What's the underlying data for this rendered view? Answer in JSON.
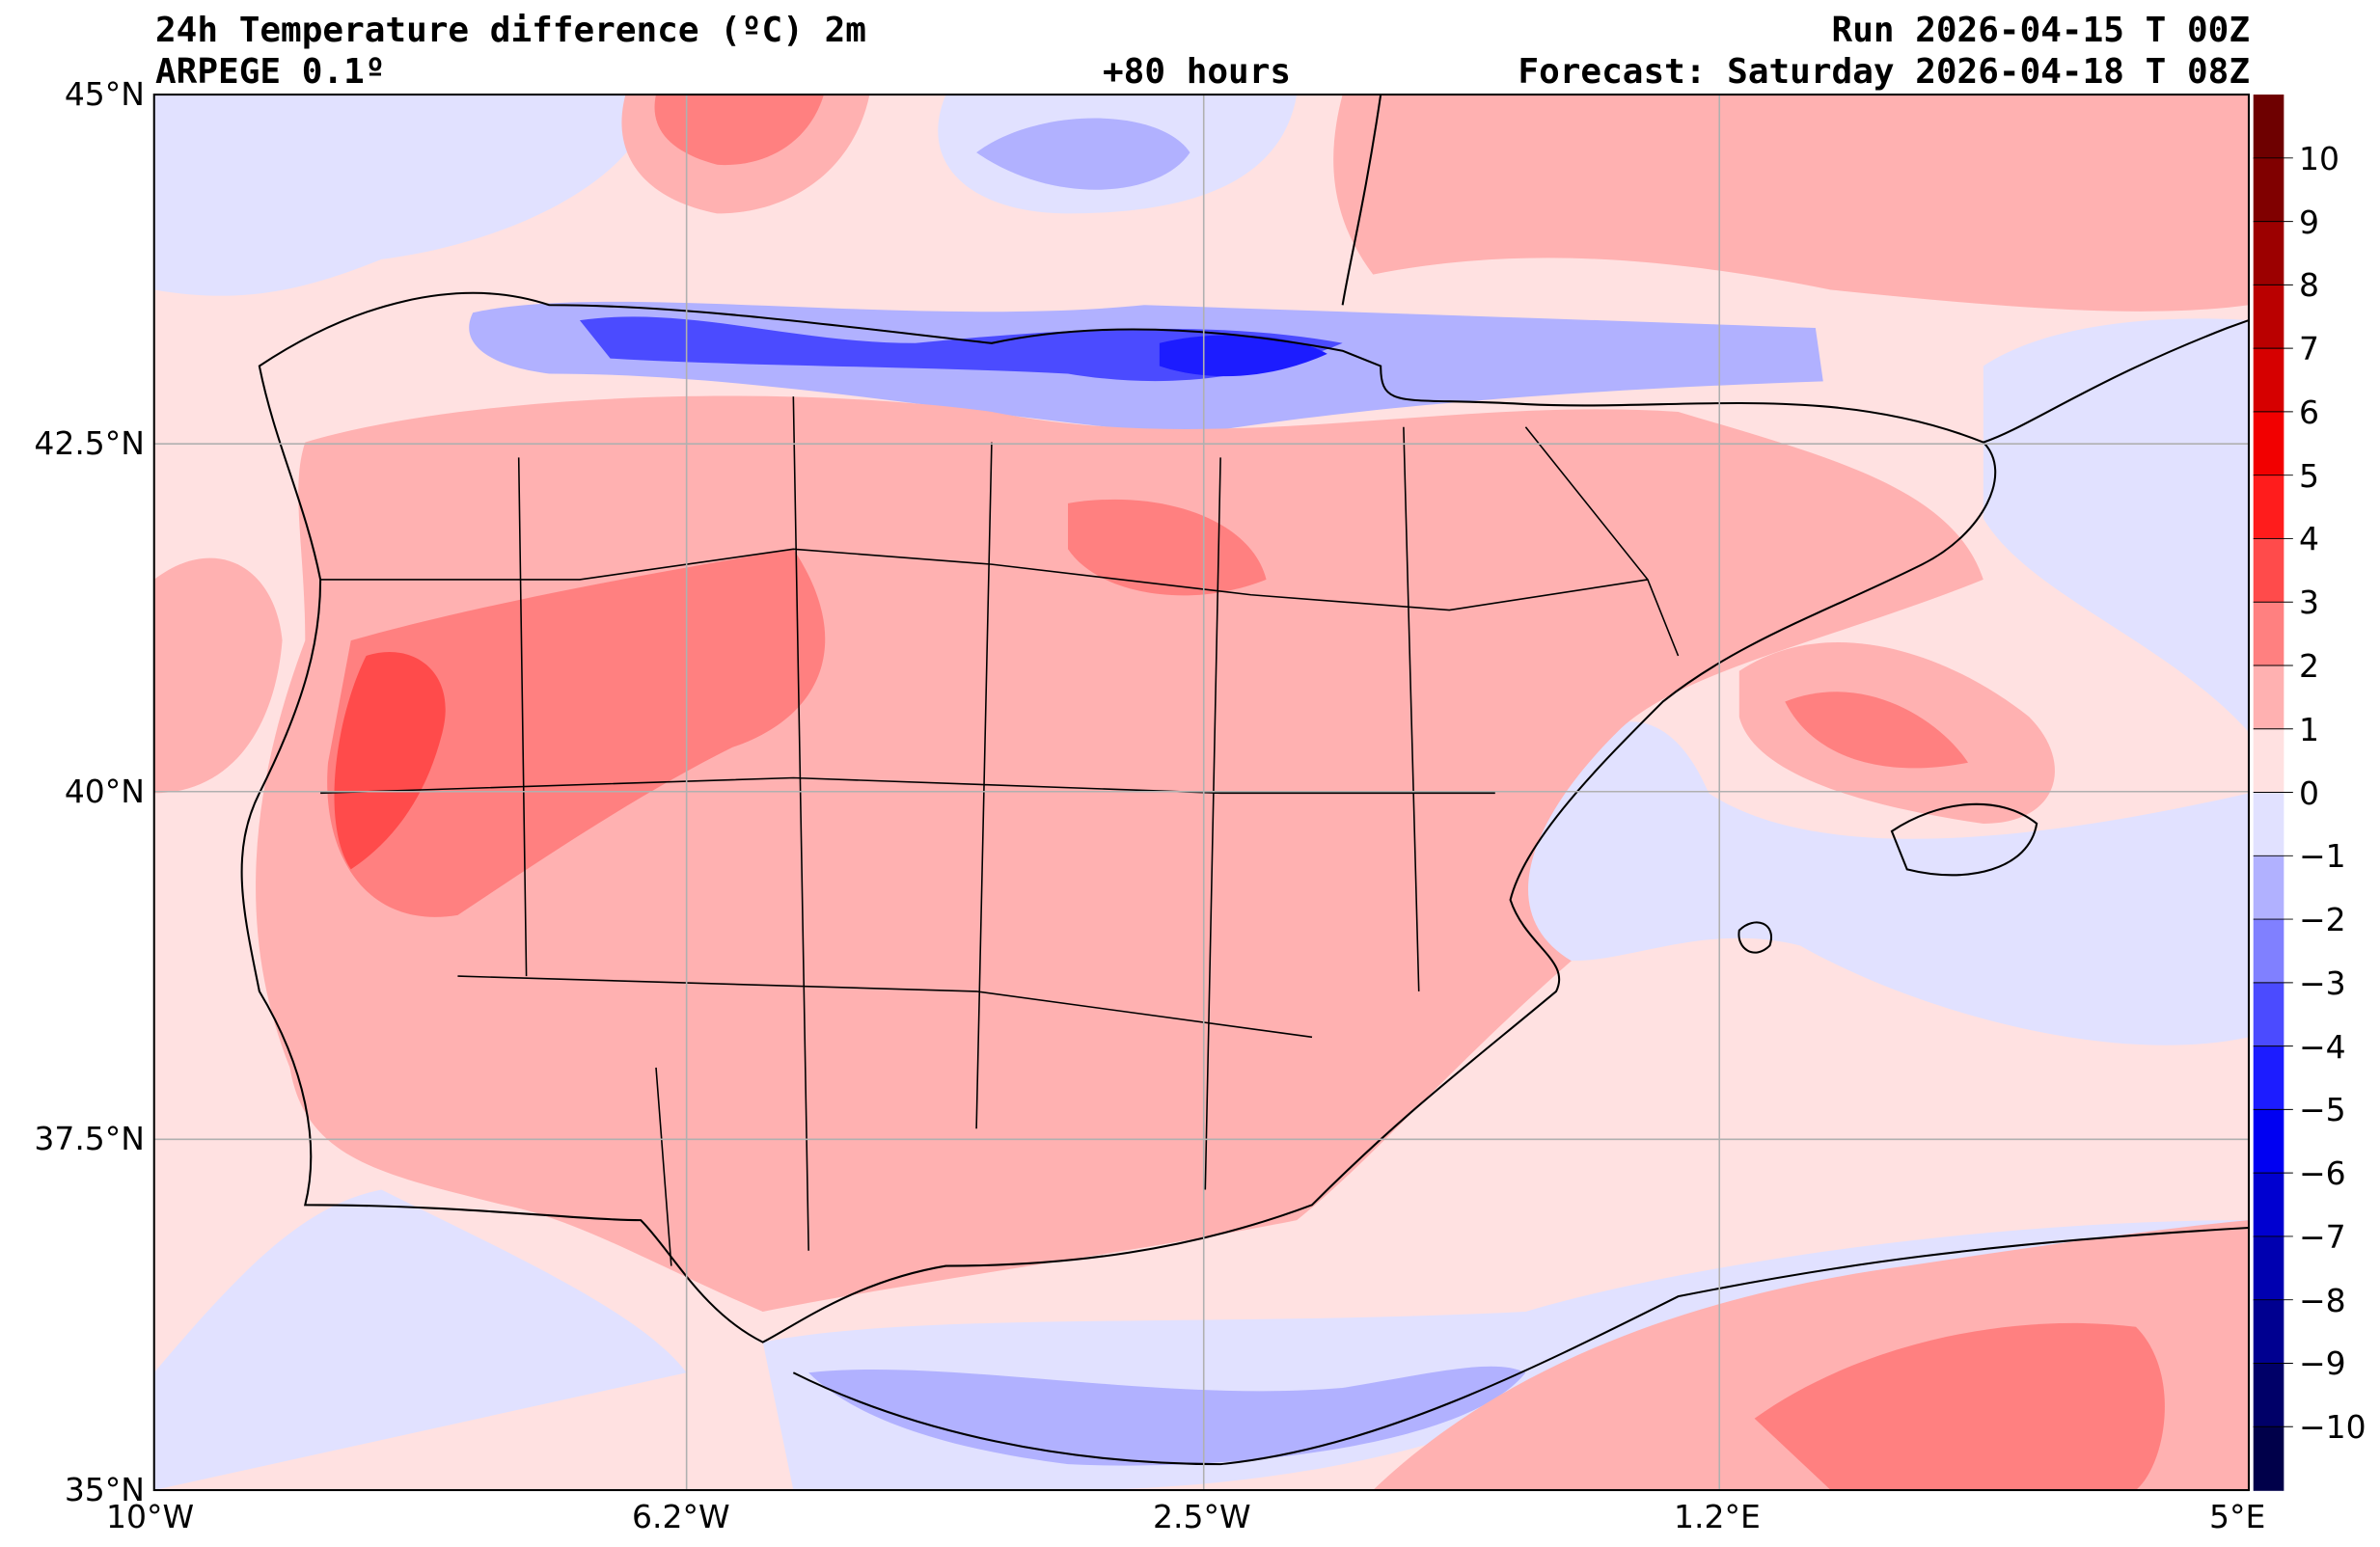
{
  "header": {
    "title": "24h Temperature difference (ºC) 2m",
    "model": "ARPEGE 0.1º",
    "lead_time": "+80 hours",
    "run": "Run 2026-04-15 T 00Z",
    "forecast": "Forecast: Saturday 2026-04-18 T 08Z"
  },
  "map": {
    "lat_labels": [
      "45°N",
      "42.5°N",
      "40°N",
      "37.5°N",
      "35°N"
    ],
    "lon_labels": [
      "10°W",
      "6.2°W",
      "2.5°W",
      "1.2°E",
      "5°E"
    ]
  },
  "colorbar": {
    "tick_labels": [
      "10",
      "9",
      "8",
      "7",
      "6",
      "5",
      "4",
      "3",
      "2",
      "1",
      "0",
      "−1",
      "−2",
      "−3",
      "−4",
      "−5",
      "−6",
      "−7",
      "−8",
      "−9",
      "−10"
    ],
    "colors": [
      "#6e0000",
      "#800000",
      "#9c0000",
      "#ba0000",
      "#d60000",
      "#f20000",
      "#ff1c1c",
      "#ff4b4b",
      "#ff8080",
      "#ffb1b1",
      "#ffe1e1",
      "#e1e1ff",
      "#b1b1ff",
      "#8080ff",
      "#4b4bff",
      "#1c1cff",
      "#0000f2",
      "#0000d0",
      "#0000b0",
      "#000090",
      "#000068",
      "#00004a"
    ]
  }
}
